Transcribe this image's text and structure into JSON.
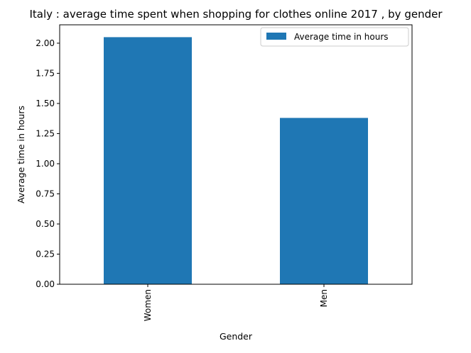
{
  "chart_data": {
    "type": "bar",
    "title": "Italy : average time spent when shopping for clothes online 2017 , by gender",
    "xlabel": "Gender",
    "ylabel": "Average time in hours",
    "categories": [
      "Women",
      "Men"
    ],
    "series": [
      {
        "name": "Average time in hours",
        "values": [
          2.05,
          1.38
        ]
      }
    ],
    "ylim": [
      0,
      2.1525
    ],
    "yticks": [
      "0.00",
      "0.25",
      "0.50",
      "0.75",
      "1.00",
      "1.25",
      "1.50",
      "1.75",
      "2.00"
    ],
    "grid": false,
    "legend_position": "upper right",
    "colors": {
      "bar": "#1f77b4",
      "axis": "#000000",
      "background": "#ffffff"
    }
  }
}
